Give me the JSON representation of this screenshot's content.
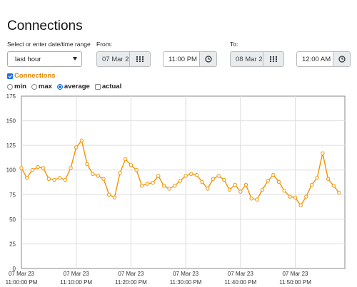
{
  "header": {
    "title": "Connections"
  },
  "range": {
    "label": "Select or enter date/time range",
    "selected": "last hour"
  },
  "from": {
    "label": "From:",
    "date": "07 Mar 2",
    "time": "11:00 PM"
  },
  "to": {
    "label": "To:",
    "date": "08 Mar 2",
    "time": "12:00 AM"
  },
  "series_toggle": {
    "label": "Connections",
    "checked": true
  },
  "options": {
    "min": "min",
    "max": "max",
    "average": "average",
    "actual": "actual",
    "selected": "average"
  },
  "colors": {
    "line": "#f29400",
    "accent": "#1a73e8"
  },
  "chart_data": {
    "type": "line",
    "title": "",
    "xlabel": "",
    "ylabel": "",
    "ylim": [
      0,
      175
    ],
    "yticks": [
      0,
      25,
      50,
      75,
      100,
      125,
      150,
      175
    ],
    "xlim": [
      "23:00",
      "23:59"
    ],
    "xticks": [
      {
        "date": "07 Mar 23",
        "time": "11:00:00 PM"
      },
      {
        "date": "07 Mar 23",
        "time": "11:10:00 PM"
      },
      {
        "date": "07 Mar 23",
        "time": "11:20:00 PM"
      },
      {
        "date": "07 Mar 23",
        "time": "11:30:00 PM"
      },
      {
        "date": "07 Mar 23",
        "time": "11:40:00 PM"
      },
      {
        "date": "07 Mar 23",
        "time": "11:50:00 PM"
      }
    ],
    "grid": true,
    "series": [
      {
        "values": [
          102,
          92,
          100,
          103,
          102,
          91,
          90,
          92,
          90,
          102,
          123,
          130,
          106,
          96,
          94,
          91,
          75,
          72,
          97,
          111,
          105,
          100,
          84,
          86,
          87,
          94,
          84,
          81,
          84,
          89,
          94,
          96,
          95,
          88,
          81,
          91,
          94,
          90,
          80,
          85,
          78,
          85,
          71,
          70,
          80,
          89,
          95,
          88,
          79,
          73,
          72,
          64,
          73,
          85,
          92,
          117,
          91,
          84,
          77
        ]
      }
    ]
  }
}
